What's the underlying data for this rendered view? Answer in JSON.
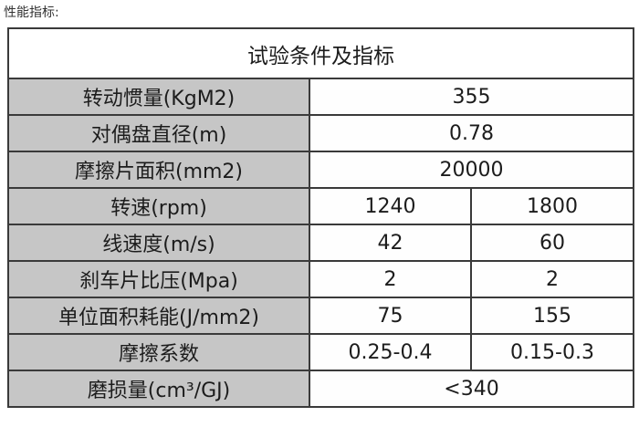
{
  "page": {
    "caption": "性能指标:"
  },
  "table": {
    "title": "试验条件及指标",
    "rows": [
      {
        "label": "转动惯量(KgM2)",
        "values": [
          "355"
        ]
      },
      {
        "label": "对偶盘直径(m)",
        "values": [
          "0.78"
        ]
      },
      {
        "label": "摩擦片面积(mm2)",
        "values": [
          "20000"
        ]
      },
      {
        "label": "转速(rpm)",
        "values": [
          "1240",
          "1800"
        ]
      },
      {
        "label": "线速度(m/s)",
        "values": [
          "42",
          "60"
        ]
      },
      {
        "label": "刹车片比压(Mpa)",
        "values": [
          "2",
          "2"
        ]
      },
      {
        "label": "单位面积耗能(J/mm2)",
        "values": [
          "75",
          "155"
        ]
      },
      {
        "label": "摩擦系数",
        "values": [
          "0.25-0.4",
          "0.15-0.3"
        ]
      },
      {
        "label": "磨损量(cm³/GJ)",
        "values": [
          "<340"
        ]
      }
    ],
    "colors": {
      "label_bg": "#c6c6c6",
      "value_bg": "#fefefe",
      "border": "#3a3a3a",
      "text": "#1c1c1c"
    }
  }
}
